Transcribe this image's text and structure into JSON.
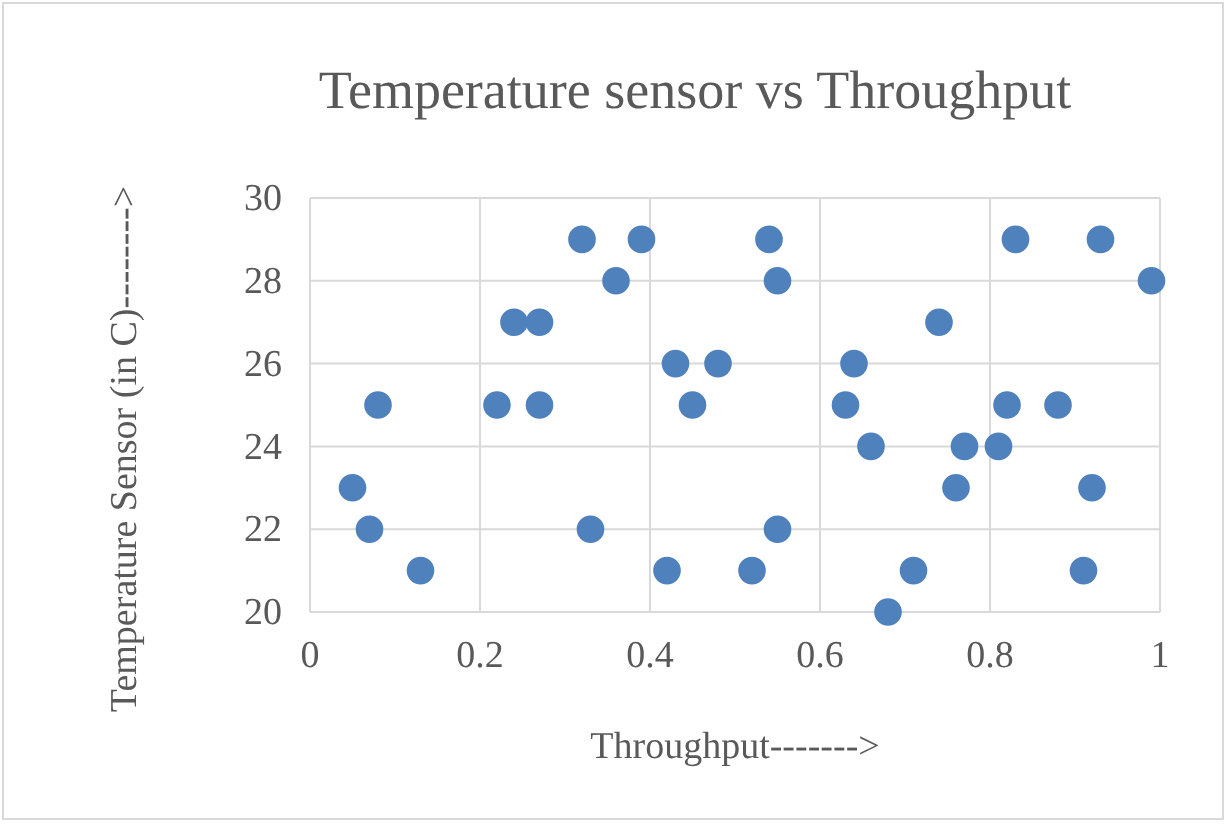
{
  "chart_data": {
    "type": "scatter",
    "title": "Temperature sensor vs Throughput",
    "xlabel": "Throughput------->",
    "ylabel": "Temperature Sensor (in C)-------->",
    "x": [
      0.05,
      0.07,
      0.13,
      0.08,
      0.22,
      0.27,
      0.24,
      0.27,
      0.32,
      0.39,
      0.36,
      0.33,
      0.42,
      0.43,
      0.45,
      0.48,
      0.54,
      0.55,
      0.55,
      0.52,
      0.74,
      0.64,
      0.63,
      0.66,
      0.71,
      0.68,
      0.76,
      0.77,
      0.81,
      0.82,
      0.88,
      0.83,
      0.93,
      0.99,
      0.92,
      0.91
    ],
    "values": [
      23,
      22,
      21,
      25,
      25,
      25,
      27,
      27,
      29,
      29,
      28,
      22,
      21,
      26,
      25,
      26,
      29,
      28,
      22,
      21,
      27,
      26,
      25,
      24,
      21,
      20,
      23,
      24,
      24,
      25,
      25,
      29,
      29,
      28,
      23,
      21
    ],
    "color": "#4f81bd",
    "marker": "circle",
    "grid": true,
    "xlim": [
      0,
      1
    ],
    "xticks": [
      0,
      0.2,
      0.4,
      0.6,
      0.8,
      1
    ],
    "ylim": [
      20,
      30
    ],
    "yticks": [
      20,
      22,
      24,
      26,
      28,
      30
    ]
  }
}
